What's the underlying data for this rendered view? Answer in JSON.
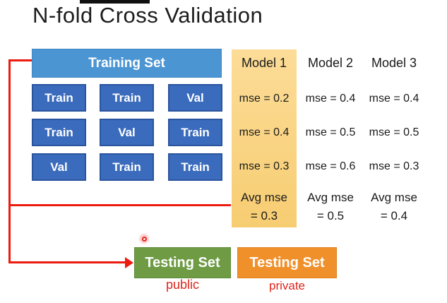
{
  "title": "N-fold Cross Validation",
  "training": {
    "header": "Training Set",
    "grid": [
      [
        "Train",
        "Train",
        "Val"
      ],
      [
        "Train",
        "Val",
        "Train"
      ],
      [
        "Val",
        "Train",
        "Train"
      ]
    ]
  },
  "models": [
    {
      "name": "Model 1",
      "mse": [
        "mse = 0.2",
        "mse = 0.4",
        "mse = 0.3"
      ],
      "avg_line1": "Avg mse",
      "avg_line2": "= 0.3",
      "highlighted": true
    },
    {
      "name": "Model 2",
      "mse": [
        "mse = 0.4",
        "mse = 0.5",
        "mse = 0.6"
      ],
      "avg_line1": "Avg mse",
      "avg_line2": "= 0.5",
      "highlighted": false
    },
    {
      "name": "Model 3",
      "mse": [
        "mse = 0.4",
        "mse = 0.5",
        "mse = 0.3"
      ],
      "avg_line1": "Avg mse",
      "avg_line2": "= 0.4",
      "highlighted": false
    }
  ],
  "testing": [
    {
      "label": "Testing Set",
      "sublabel": "public",
      "color": "#6e9b44"
    },
    {
      "label": "Testing Set",
      "sublabel": "private",
      "color": "#f0902a"
    }
  ],
  "colors": {
    "training_header": "#4c95d3",
    "fold_cell": "#3a6bbc",
    "model1_highlight_top": "#fcdc97",
    "model1_highlight_bottom": "#f7cd72",
    "connector_red": "#ec1b10",
    "sublabel_red": "#df261c"
  }
}
